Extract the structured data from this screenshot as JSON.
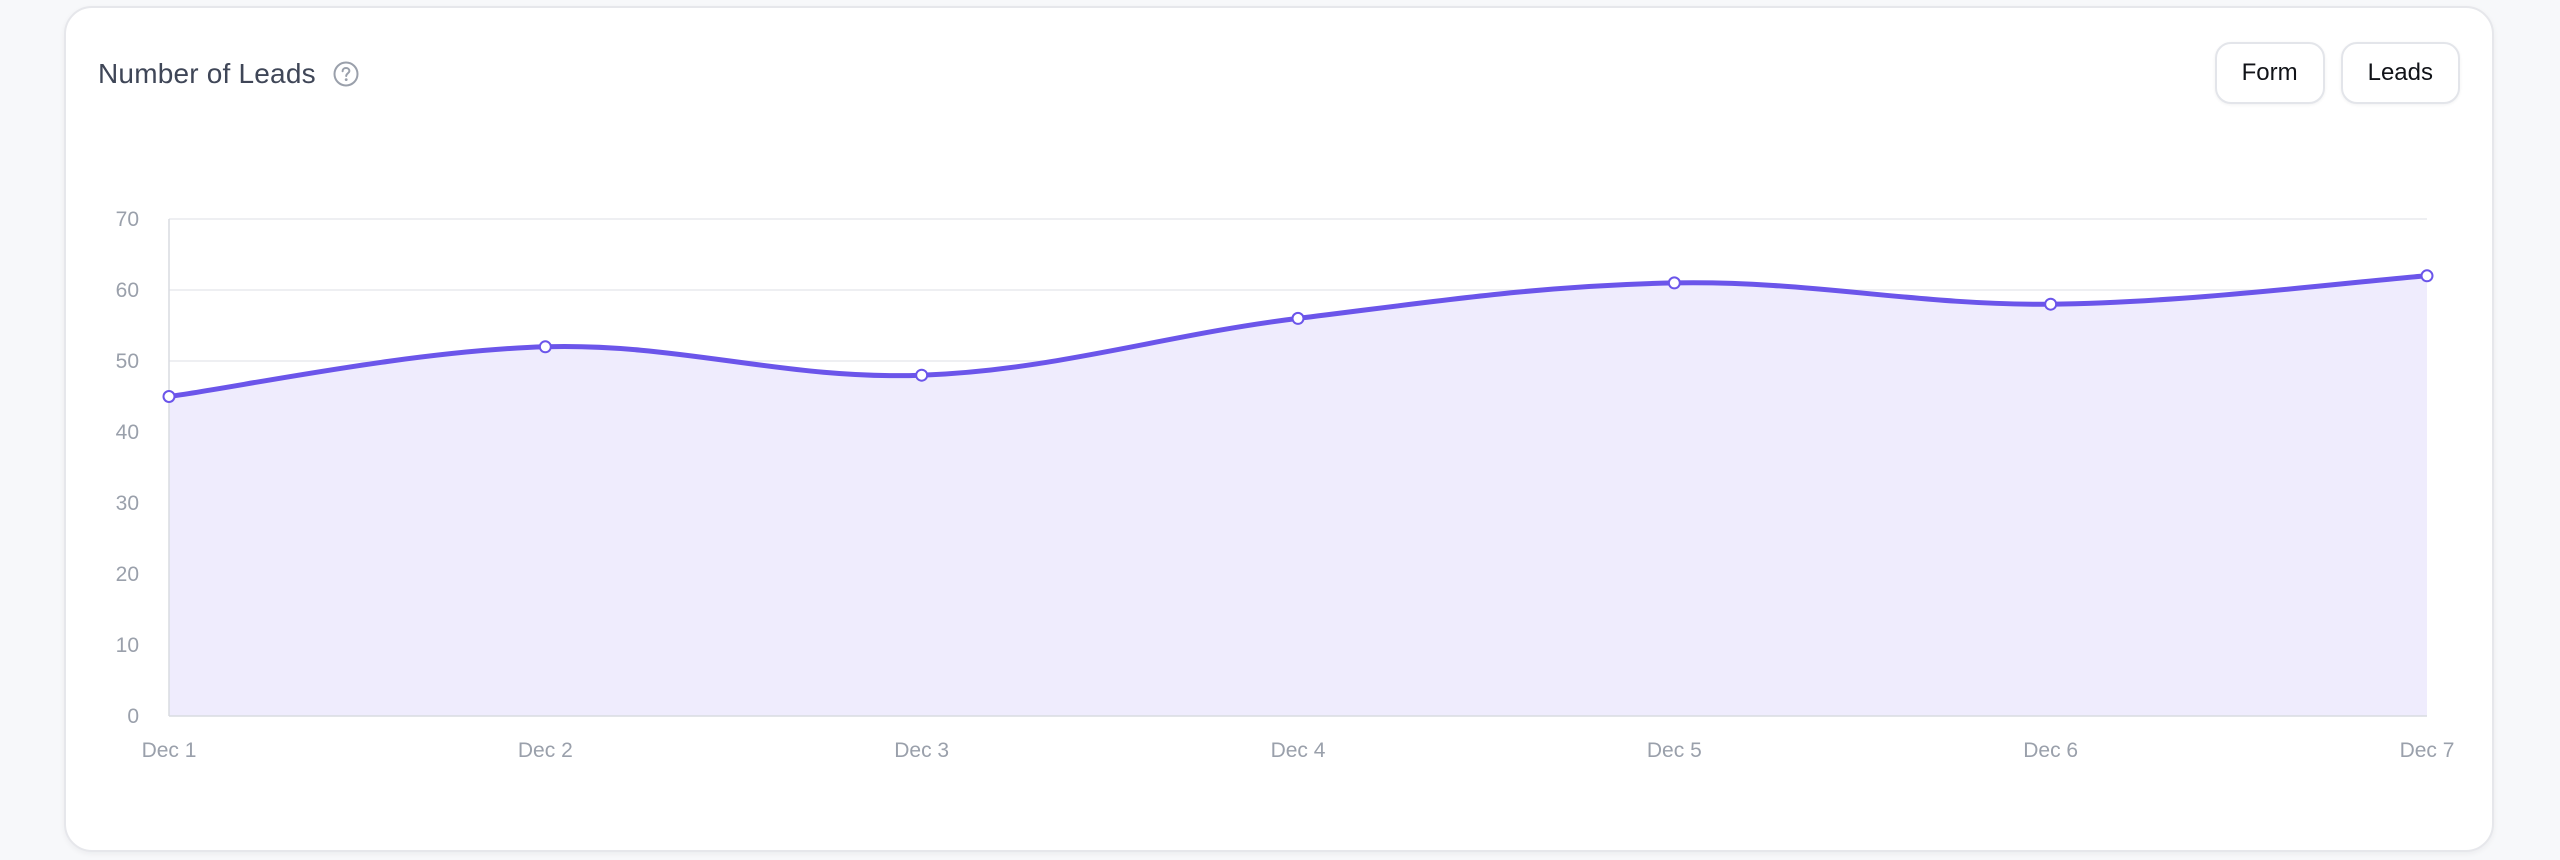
{
  "card": {
    "title": "Number of Leads",
    "help_icon": "question-circle-icon"
  },
  "toolbar": {
    "buttons": [
      "Form",
      "Leads"
    ]
  },
  "colors": {
    "line": "#6b55ea",
    "fill": "#efecfd",
    "grid": "#e9eaee",
    "axis": "#d9dbe1",
    "tick_text": "#9aa0ab"
  },
  "chart_data": {
    "type": "area",
    "title": "Number of Leads",
    "x": [
      "Dec 1",
      "Dec 2",
      "Dec 3",
      "Dec 4",
      "Dec 5",
      "Dec 6",
      "Dec 7"
    ],
    "series": [
      {
        "values": [
          45,
          52,
          48,
          56,
          61,
          58,
          62
        ]
      }
    ],
    "ylim": [
      0,
      70
    ],
    "yticks": [
      "0",
      "10",
      "20",
      "30",
      "40",
      "50",
      "60",
      "70"
    ],
    "grid": true,
    "smooth": true
  }
}
